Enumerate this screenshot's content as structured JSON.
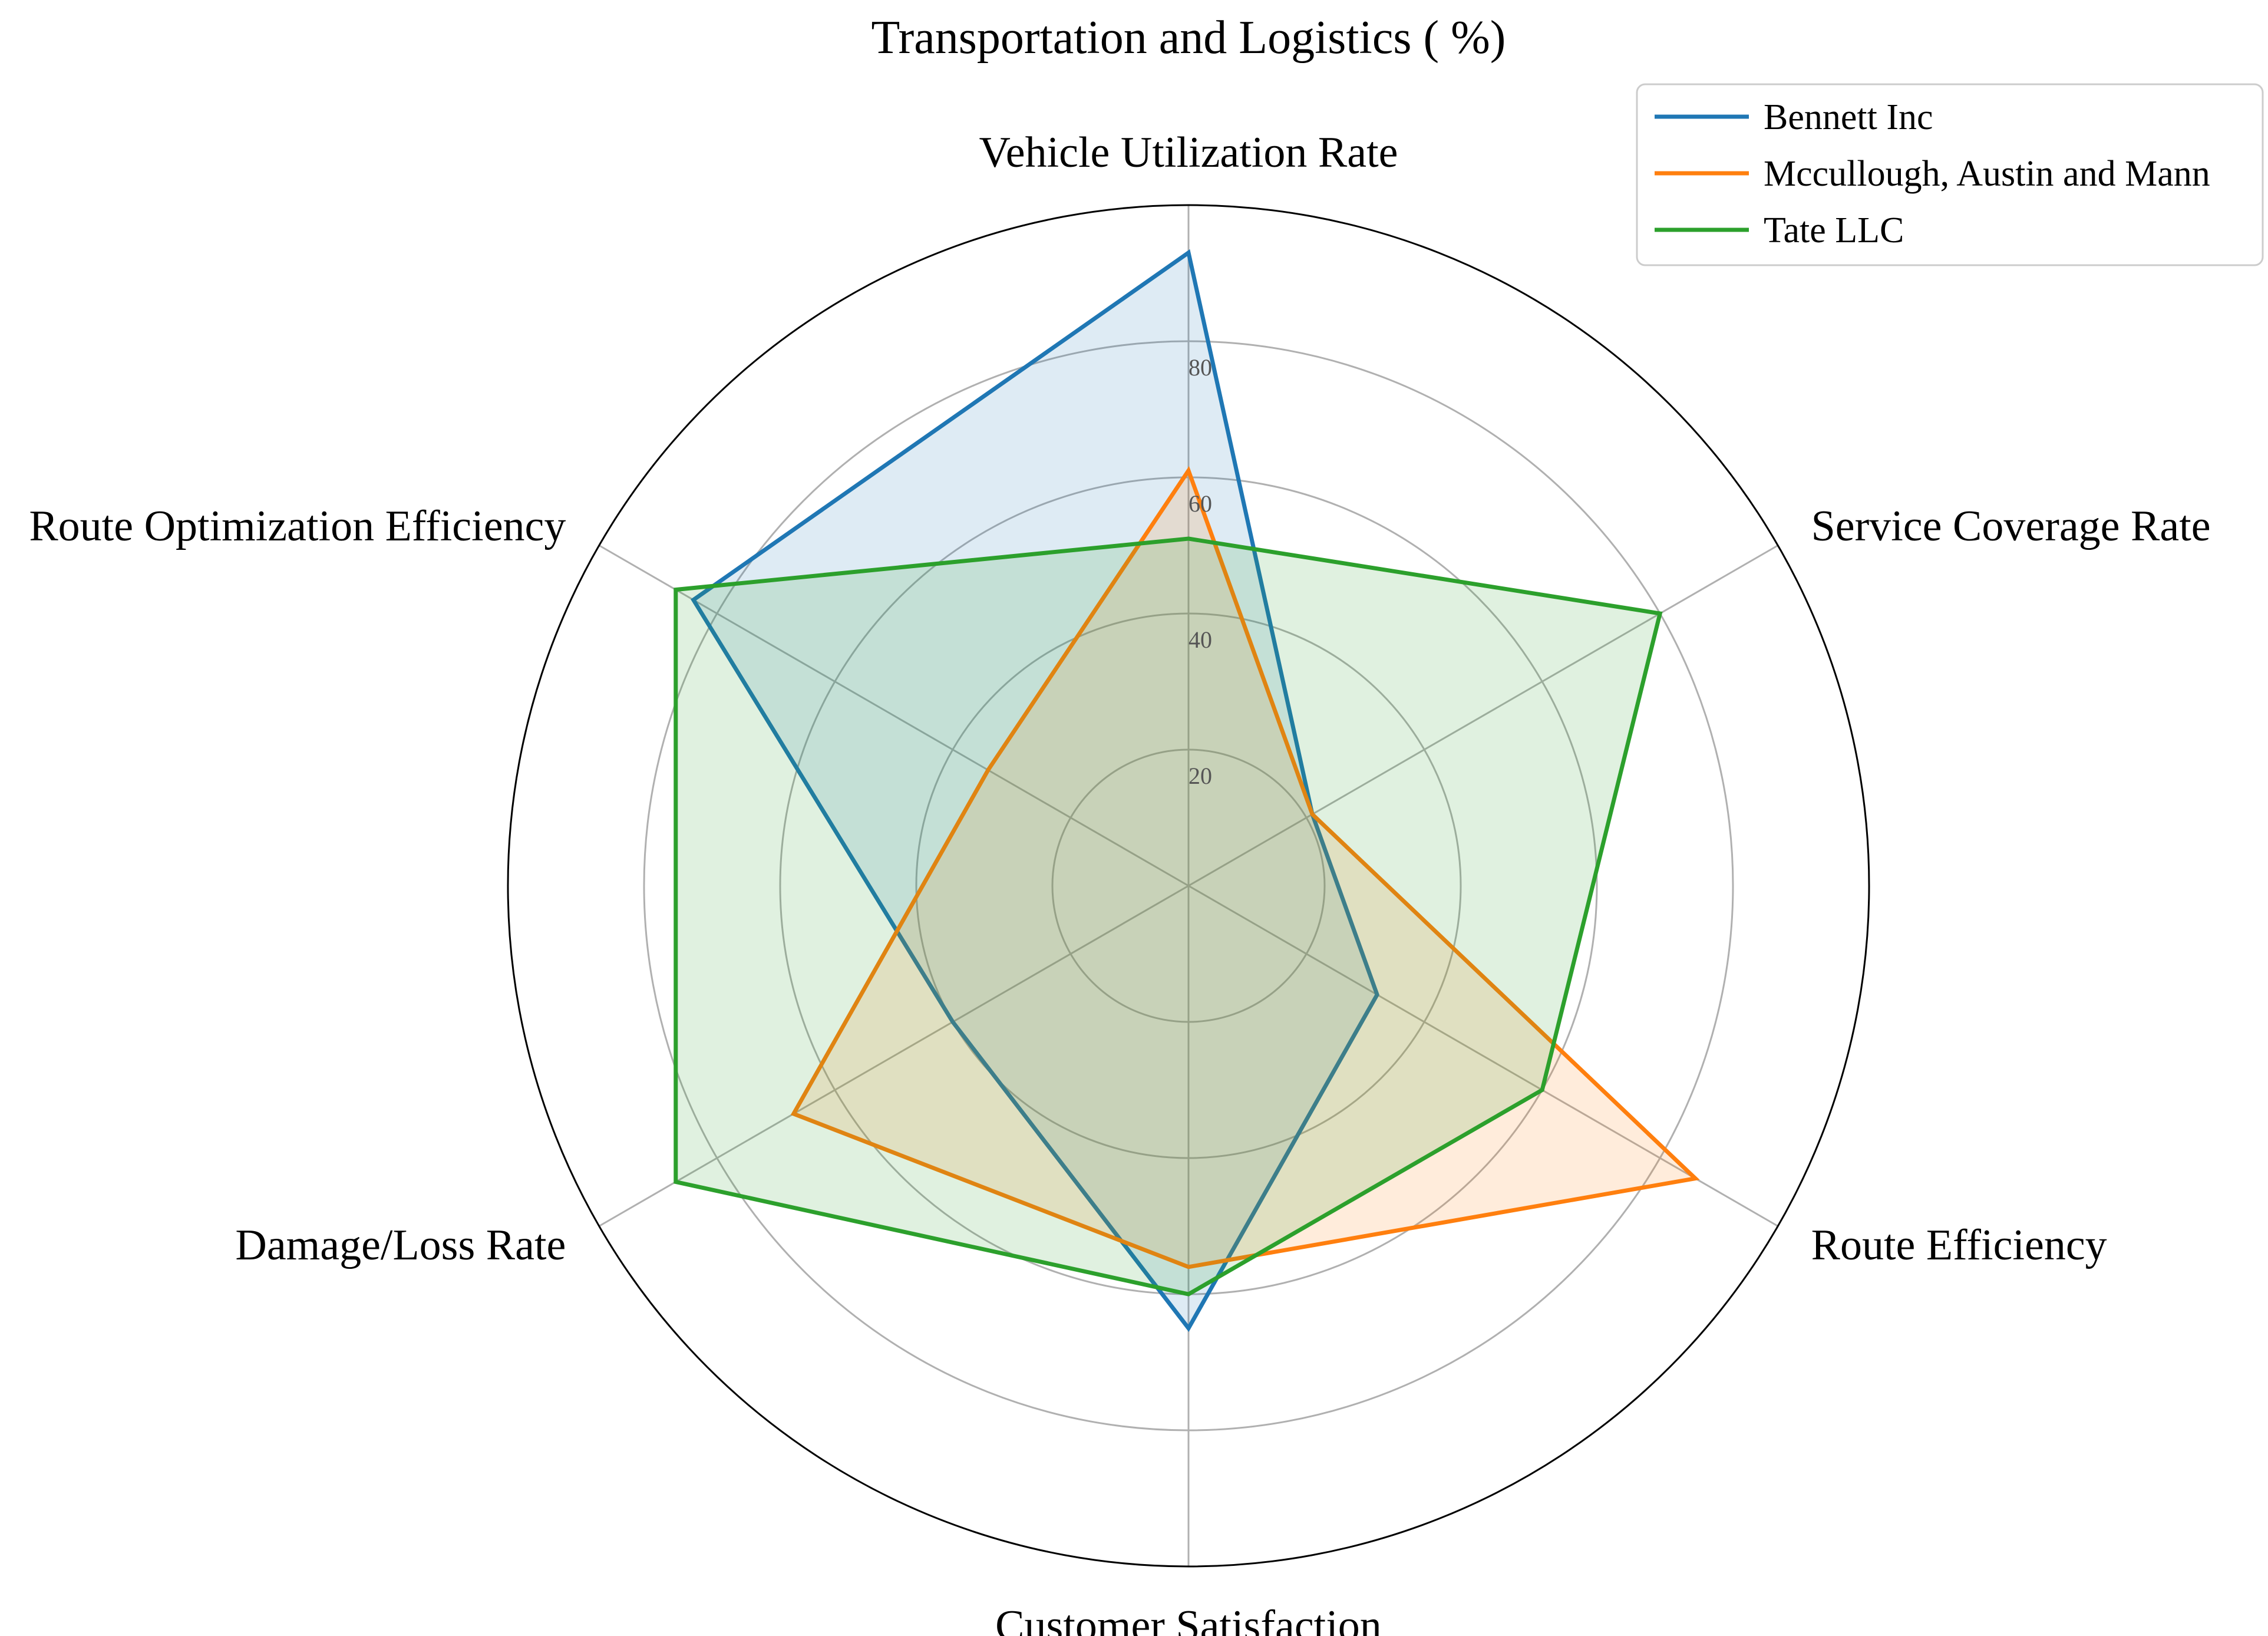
{
  "chart_data": {
    "type": "radar",
    "title": "Transportation and Logistics ( %)",
    "categories": [
      "Vehicle Utilization Rate",
      "Service Coverage Rate",
      "Route Efficiency",
      "Customer Satisfaction",
      "Damage/Loss Rate",
      "Route Optimization Efficiency"
    ],
    "rlim": [
      0,
      100
    ],
    "r_ticks": [
      20,
      40,
      60,
      80
    ],
    "grid": true,
    "legend_position": "top-right",
    "series": [
      {
        "name": "Bennett Inc",
        "color": "#1f77b4",
        "values": [
          93,
          21,
          32,
          65,
          40,
          84
        ]
      },
      {
        "name": "Mccullough, Austin and Mann",
        "color": "#ff7f0e",
        "values": [
          61,
          21,
          86,
          56,
          67,
          34
        ]
      },
      {
        "name": "Tate LLC",
        "color": "#2ca02c",
        "values": [
          51,
          80,
          60,
          60,
          87,
          87
        ]
      }
    ]
  }
}
